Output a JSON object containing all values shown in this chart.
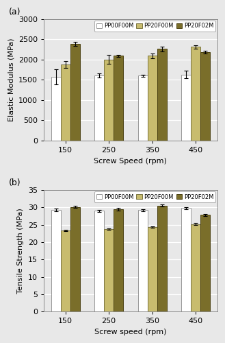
{
  "subplot_a": {
    "title": "(a)",
    "ylabel": "Elastic Modulus (MPa)",
    "xlabel": "Screw Speed (rpm)",
    "categories": [
      150,
      250,
      350,
      450
    ],
    "series": {
      "PP00F00M": {
        "values": [
          1575,
          1600,
          1600,
          1630
        ],
        "errors": [
          180,
          50,
          30,
          90
        ],
        "color": "#ffffff",
        "edgecolor": "#999999"
      },
      "PP20F00M": {
        "values": [
          1880,
          2000,
          2090,
          2310
        ],
        "errors": [
          80,
          110,
          60,
          40
        ],
        "color": "#c8bc6e",
        "edgecolor": "#7a7440"
      },
      "PP20F02M": {
        "values": [
          2390,
          2090,
          2260,
          2180
        ],
        "errors": [
          50,
          30,
          55,
          40
        ],
        "color": "#7a6e2a",
        "edgecolor": "#4a4010"
      }
    },
    "ylim": [
      0,
      3000
    ],
    "yticks": [
      0,
      500,
      1000,
      1500,
      2000,
      2500,
      3000
    ]
  },
  "subplot_b": {
    "title": "(b)",
    "ylabel": "Tensile Strength (MPa)",
    "xlabel": "Screw speed (rpm)",
    "categories": [
      150,
      250,
      350,
      450
    ],
    "series": {
      "PP00F00M": {
        "values": [
          29.3,
          29.0,
          29.2,
          29.8
        ],
        "errors": [
          0.35,
          0.25,
          0.25,
          0.25
        ],
        "color": "#ffffff",
        "edgecolor": "#999999"
      },
      "PP20F00M": {
        "values": [
          23.3,
          23.7,
          24.3,
          25.2
        ],
        "errors": [
          0.25,
          0.25,
          0.25,
          0.25
        ],
        "color": "#c8bc6e",
        "edgecolor": "#7a7440"
      },
      "PP20F02M": {
        "values": [
          30.1,
          29.4,
          30.5,
          27.8
        ],
        "errors": [
          0.25,
          0.4,
          0.25,
          0.25
        ],
        "color": "#7a6e2a",
        "edgecolor": "#4a4010"
      }
    },
    "ylim": [
      0,
      35
    ],
    "yticks": [
      0,
      5,
      10,
      15,
      20,
      25,
      30,
      35
    ]
  },
  "legend_labels": [
    "PP00F00M",
    "PP20F00M",
    "PP20F02M"
  ],
  "legend_colors": [
    "#ffffff",
    "#c8bc6e",
    "#7a6e2a"
  ],
  "legend_edgecolors": [
    "#999999",
    "#7a7440",
    "#4a4010"
  ],
  "bar_width": 0.22,
  "figsize": [
    3.29,
    5.0
  ],
  "dpi": 100,
  "bg_color": "#e8e8e8",
  "plot_bg_color": "#e8e8e8"
}
